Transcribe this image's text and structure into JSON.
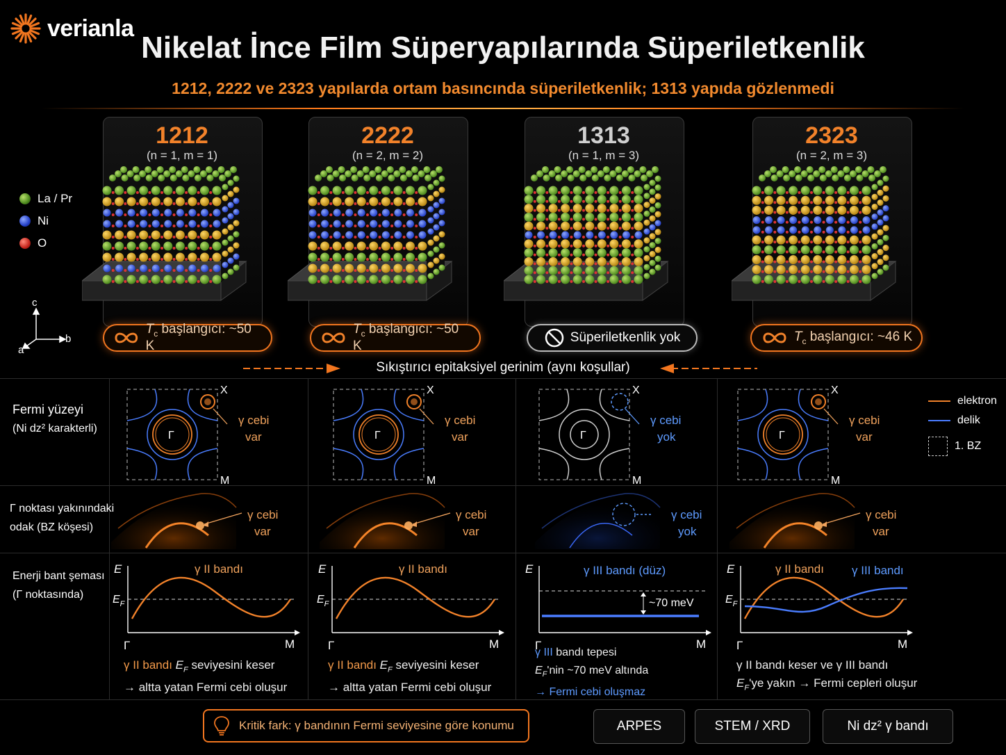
{
  "brand": {
    "name": "verianla"
  },
  "header": {
    "title": "Nikelat İnce Film Süperyapılarında Süperiletkenlik",
    "subtitle": "1212, 2222 ve 2323 yapılarda ortam basıncında süperiletkenlik; 1313 yapıda gözlenmedi"
  },
  "atom_legend": [
    {
      "label": "La / Pr",
      "color": "#5f9a2e"
    },
    {
      "label": "Ni",
      "color": "#2f4fd6"
    },
    {
      "label": "O",
      "color": "#c8231c"
    }
  ],
  "axes_labels": {
    "c": "c",
    "a": "a",
    "b": "b"
  },
  "structures": [
    {
      "name": "1212",
      "params": "(n = 1, m = 1)",
      "badge": "T",
      "badge_sub": "c",
      "badge_rest": " başlangıcı: ~50 K",
      "superconducting": true,
      "accent": "#f2822a"
    },
    {
      "name": "2222",
      "params": "(n = 2, m = 2)",
      "badge": "T",
      "badge_sub": "c",
      "badge_rest": " başlangıcı: ~50 K",
      "superconducting": true,
      "accent": "#f2822a"
    },
    {
      "name": "1313",
      "params": "(n = 1, m = 3)",
      "badge": "Süperiletkenlik yok",
      "badge_sub": "",
      "badge_rest": "",
      "superconducting": false,
      "accent": "#d0d0d0"
    },
    {
      "name": "2323",
      "params": "(n = 2, m = 3)",
      "badge": "T",
      "badge_sub": "c",
      "badge_rest": " başlangıcı: ~46 K",
      "superconducting": true,
      "accent": "#f2822a"
    }
  ],
  "strain_label": "Sıkıştırıcı epitaksiyel gerinim (aynı koşullar)",
  "rows": {
    "fermi": {
      "label_1": "Fermi yüzeyi",
      "label_2": "(Ni dz² karakterli)"
    },
    "arpes": {
      "label_1": "Γ noktası yakınındaki",
      "label_2": "odak (BZ köşesi)"
    },
    "band": {
      "label_1": "Enerji bant şeması",
      "label_2": "(Γ noktasında)"
    }
  },
  "fermi_panels": [
    {
      "corner_x": "X",
      "corner_m": "M",
      "gamma": "Γ",
      "note_1": "γ cebi",
      "note_2": "var",
      "pocket": true
    },
    {
      "corner_x": "X",
      "corner_m": "M",
      "gamma": "Γ",
      "note_1": "γ cebi",
      "note_2": "var",
      "pocket": true
    },
    {
      "corner_x": "X",
      "corner_m": "M",
      "gamma": "Γ",
      "note_1": "γ cebi",
      "note_2": "yok",
      "pocket": false
    },
    {
      "corner_x": "X",
      "corner_m": "M",
      "gamma": "Γ",
      "note_1": "γ cebi",
      "note_2": "var",
      "pocket": true
    }
  ],
  "fermi_legend": {
    "electron": "elektron",
    "hole": "delik",
    "bz": "1. BZ",
    "electron_color": "#f2822a",
    "hole_color": "#4a7dff"
  },
  "arpes_panels": [
    {
      "note_1": "γ cebi",
      "note_2": "var",
      "pocket": true
    },
    {
      "note_1": "γ cebi",
      "note_2": "var",
      "pocket": true
    },
    {
      "note_1": "γ cebi",
      "note_2": "yok",
      "pocket": false
    },
    {
      "note_1": "γ cebi",
      "note_2": "var",
      "pocket": true
    }
  ],
  "band_panels": [
    {
      "e": "E",
      "ef": "E",
      "ef_sub": "F",
      "gamma": "Γ",
      "m": "M",
      "band_label": "γ II bandı",
      "band_label_2": "",
      "gap": "",
      "cap_1a": "γ II bandı ",
      "cap_1b": "E",
      "cap_1c": "F",
      "cap_1d": " seviyesini keser",
      "cap_2": "→ altta yatan Fermi cebi oluşur"
    },
    {
      "e": "E",
      "ef": "E",
      "ef_sub": "F",
      "gamma": "Γ",
      "m": "M",
      "band_label": "γ II bandı",
      "band_label_2": "",
      "gap": "",
      "cap_1a": "γ II bandı ",
      "cap_1b": "E",
      "cap_1c": "F",
      "cap_1d": " seviyesini keser",
      "cap_2": "→ altta yatan Fermi cebi oluşur"
    },
    {
      "e": "E",
      "ef": "",
      "ef_sub": "",
      "gamma": "Γ",
      "m": "M",
      "band_label": "γ III bandı (düz)",
      "band_label_2": "",
      "gap": "~70 meV",
      "cap_1a": "γ III",
      "cap_1b": " bandı tepesi",
      "cap_1c": "",
      "cap_1d": "",
      "cap_2": "E",
      "cap_2_sub": "F",
      "cap_2_rest": "'nin ~70 meV altında",
      "cap_3": "→ Fermi cebi oluşmaz"
    },
    {
      "e": "E",
      "ef": "E",
      "ef_sub": "F",
      "gamma": "Γ",
      "m": "M",
      "band_label": "γ II bandı",
      "band_label_2": "γ III bandı",
      "gap": "",
      "cap_1a": "γ II bandı keser ve γ III bandı",
      "cap_1b": "",
      "cap_1c": "",
      "cap_1d": "",
      "cap_2": "E",
      "cap_2_sub": "F",
      "cap_2_rest": "'ye yakın → Fermi cepleri oluşur"
    }
  ],
  "footer": {
    "critical": "Kritik fark:  γ bandının Fermi seviyesine göre konumu",
    "tags": [
      "ARPES",
      "STEM / XRD",
      "Ni dz² γ bandı"
    ]
  }
}
